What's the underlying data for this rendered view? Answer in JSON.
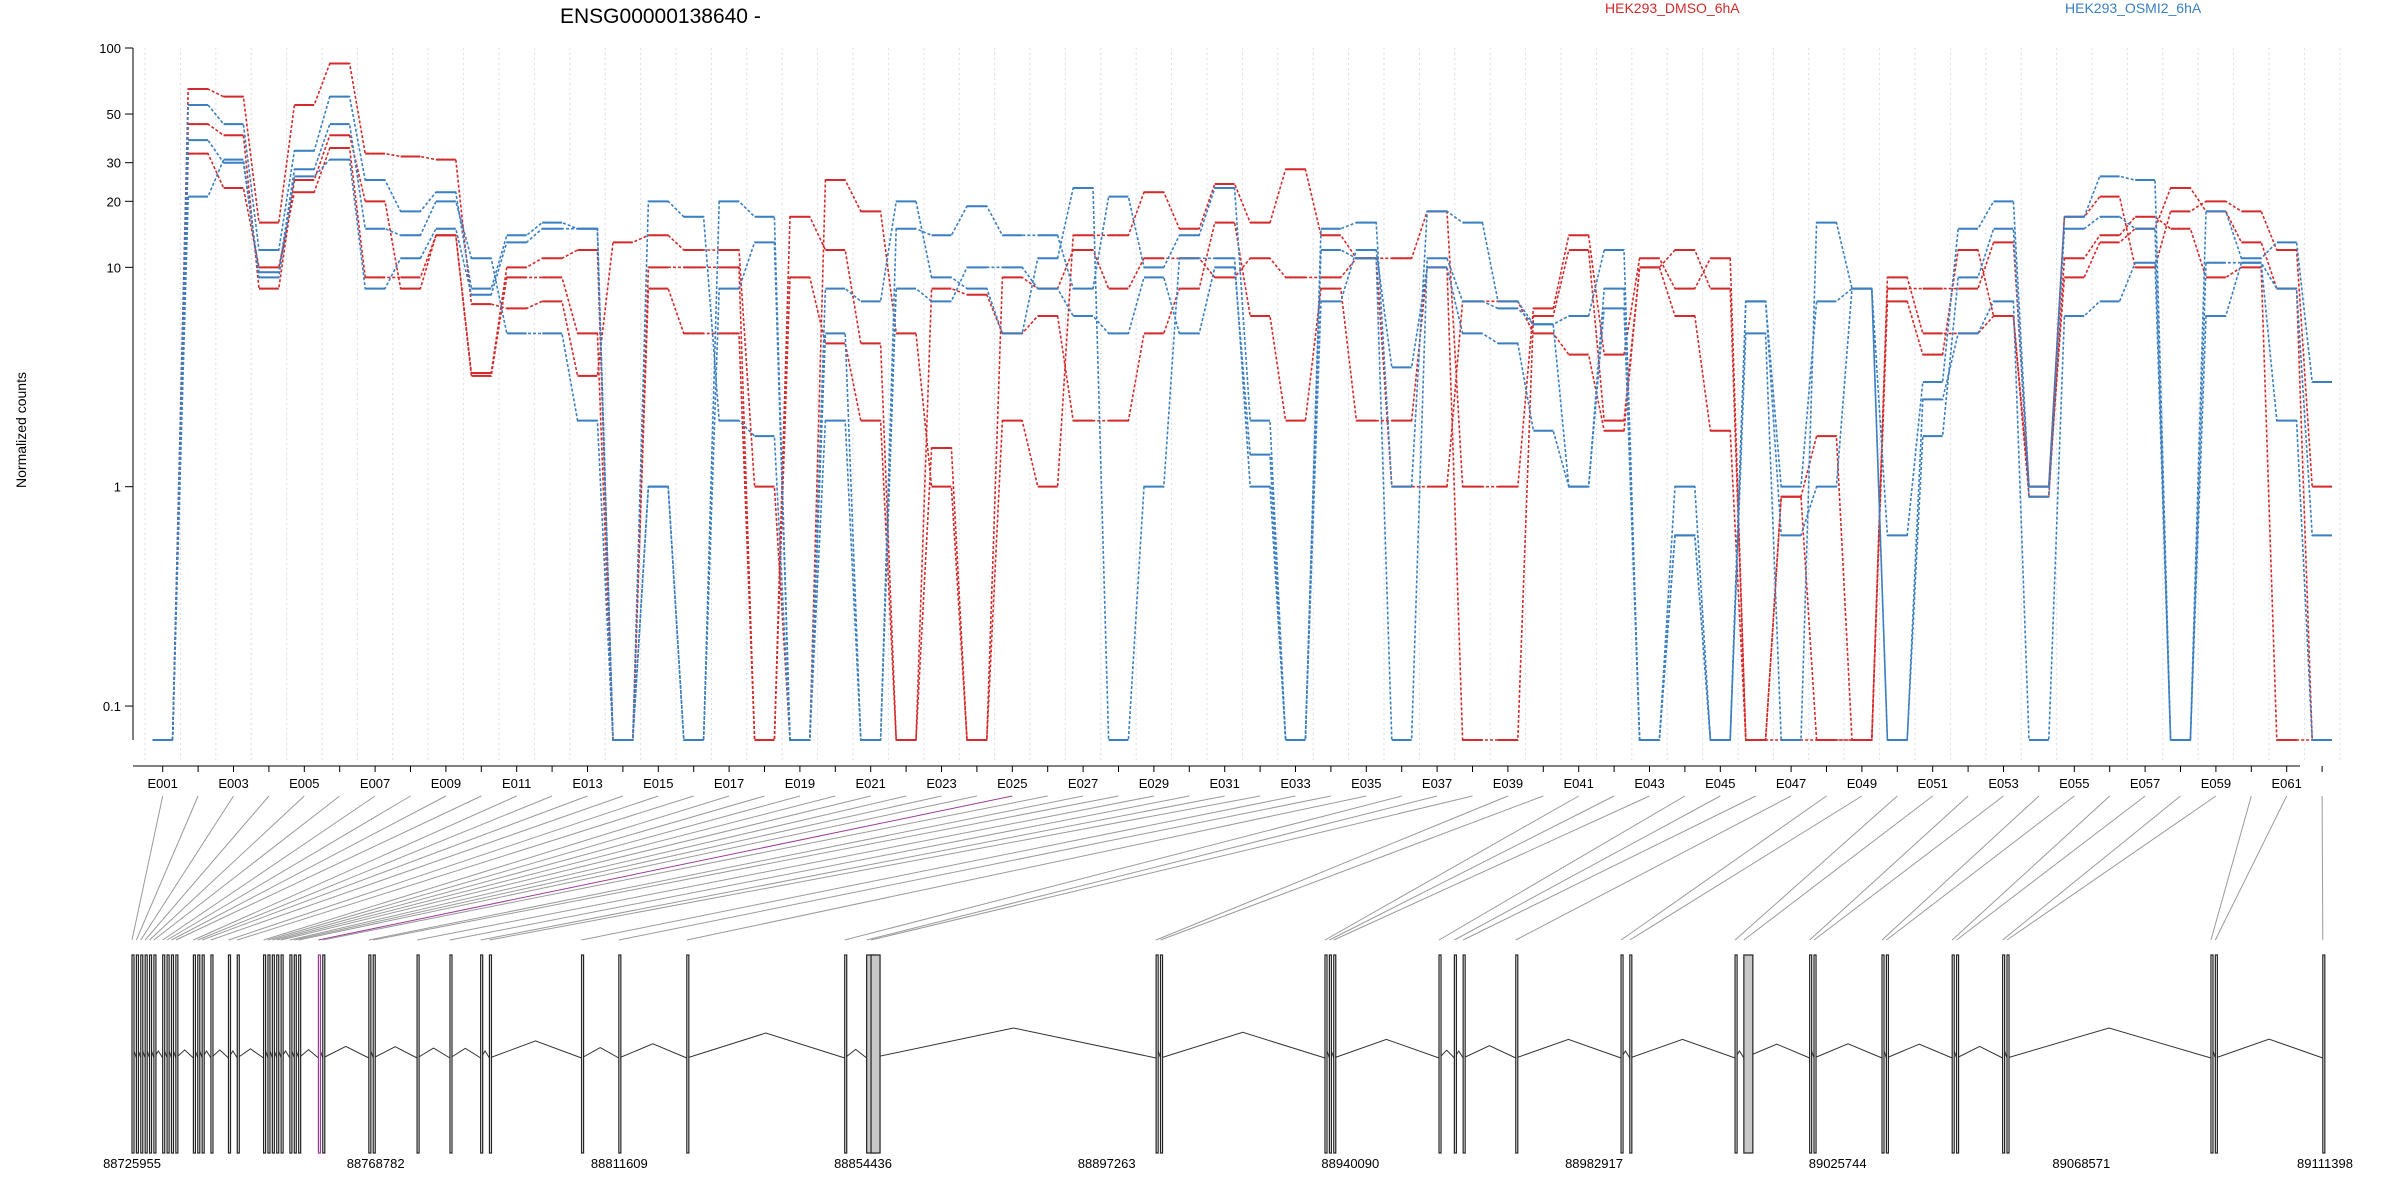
{
  "chart_data": {
    "type": "line",
    "title": "ENSG00000138640 -",
    "ylabel": "Normalized counts",
    "xlabel": "",
    "yscale": "log",
    "ylim": [
      0.07,
      100
    ],
    "y_ticks": [
      "100",
      "50",
      "30",
      "20",
      "10",
      "1",
      "0.1"
    ],
    "y_tick_values": [
      100,
      50,
      30,
      20,
      10,
      1,
      0.1
    ],
    "legend_position": "top",
    "grid": "vertical dotted",
    "colors": {
      "HEK293_DMSO_6hA": "#d42a2a",
      "HEK293_OSMI2_6hA": "#3a7fc1",
      "highlight": "#9b3d9b"
    },
    "exon_labels": [
      "E001",
      "E003",
      "E005",
      "E007",
      "E009",
      "E011",
      "E013",
      "E015",
      "E017",
      "E019",
      "E021",
      "E023",
      "E025",
      "E027",
      "E029",
      "E031",
      "E033",
      "E035",
      "E037",
      "E039",
      "E041",
      "E043",
      "E045",
      "E047",
      "E049",
      "E051",
      "E053",
      "E055",
      "E057",
      "E059",
      "E061"
    ],
    "genomic_ticks": [
      "88725955",
      "88768782",
      "88811609",
      "88854436",
      "88897263",
      "88940090",
      "88982917",
      "89025744",
      "89068571",
      "89111398"
    ],
    "genomic_tick_values": [
      88725955,
      88768782,
      88811609,
      88854436,
      88897263,
      88940090,
      88982917,
      89025744,
      89068571,
      89111398
    ],
    "series": [
      {
        "name": "HEK293_DMSO_6hA",
        "values": [
          0.07,
          65,
          60,
          16,
          55,
          85,
          33,
          32,
          31,
          6.8,
          6.5,
          7,
          3.2,
          13,
          14,
          12,
          12,
          1,
          0.07,
          25,
          18,
          5,
          1,
          0.07,
          2,
          1,
          14,
          14,
          22,
          15,
          24,
          16,
          28,
          14,
          11,
          11,
          18,
          1,
          1,
          6.5,
          14,
          4,
          11,
          8,
          11,
          0.07,
          0.9,
          1.7,
          0.07,
          8,
          8,
          8,
          13,
          1,
          17,
          21,
          10,
          18,
          20,
          18,
          12,
          1
        ]
      },
      {
        "name": "HEK293_DMSO_6hA",
        "values": [
          0.07,
          45,
          40,
          8,
          25,
          40,
          20,
          8,
          14,
          3.2,
          9,
          9,
          5,
          0.07,
          10,
          10,
          10,
          0.07,
          17,
          12,
          4.5,
          0.07,
          1.5,
          0.07,
          9,
          8,
          12,
          8,
          11,
          11,
          9,
          11,
          9,
          9,
          11,
          1,
          1,
          7,
          7,
          5,
          4,
          1.8,
          10,
          12,
          8,
          0.07,
          0.07,
          0.07,
          0.07,
          7,
          4,
          12,
          6,
          1,
          9,
          13,
          15,
          23,
          18,
          13,
          8,
          0.07
        ]
      },
      {
        "name": "HEK293_DMSO_6hA",
        "values": [
          0.07,
          33,
          23,
          10,
          22,
          35,
          9,
          9,
          14,
          3.3,
          10,
          11,
          12,
          0.07,
          8,
          5,
          5,
          0.07,
          9,
          4.5,
          2,
          0.07,
          8,
          7.5,
          5,
          6,
          2,
          2,
          5,
          8,
          16,
          6,
          2,
          8,
          2,
          2,
          10,
          0.07,
          0.07,
          6,
          12,
          2,
          10,
          6,
          1.8,
          0.07,
          0.9,
          0.07,
          0.07,
          9,
          5,
          5,
          6,
          0.9,
          11,
          14,
          17,
          15,
          9,
          10,
          0.07,
          0.07
        ]
      },
      {
        "name": "HEK293_OSMI2_6hA",
        "values": [
          0.07,
          55,
          45,
          12,
          34,
          60,
          25,
          18,
          22,
          8,
          14,
          16,
          15,
          0.07,
          1,
          0.07,
          20,
          17,
          0.07,
          5,
          0.07,
          15,
          14,
          19,
          14,
          14,
          8,
          21,
          10,
          14,
          23,
          2,
          0.07,
          15,
          16,
          1,
          18,
          16,
          7,
          5.5,
          6,
          12,
          0.07,
          1,
          0.07,
          5,
          0.07,
          16,
          8,
          0.6,
          3,
          15,
          20,
          1,
          17,
          26,
          25,
          0.07,
          18,
          11,
          13,
          3
        ]
      },
      {
        "name": "HEK293_OSMI2_6hA",
        "values": [
          0.07,
          38,
          30,
          9.5,
          28,
          45,
          15,
          14,
          20,
          11,
          5,
          5,
          2,
          0.07,
          20,
          17,
          2,
          1.7,
          0.07,
          8,
          7,
          20,
          9,
          8,
          5,
          11,
          23,
          0.07,
          1,
          11,
          11,
          1,
          0.07,
          12,
          11,
          0.07,
          11,
          7,
          6.5,
          5.5,
          1,
          8,
          0.07,
          0.6,
          0.07,
          7,
          1,
          7,
          8,
          0.07,
          1.7,
          9,
          15,
          0.9,
          15,
          17,
          15,
          0.07,
          10.5,
          10.5,
          8,
          0.6
        ]
      },
      {
        "name": "HEK293_OSMI2_6hA",
        "values": [
          0.07,
          21,
          31,
          9,
          26,
          31,
          8,
          11,
          15,
          7.5,
          13,
          15,
          15,
          0.07,
          1,
          0.07,
          8,
          13,
          0.07,
          2,
          0.07,
          8,
          7,
          10,
          10,
          8,
          6,
          5,
          9,
          5,
          10,
          1.4,
          0.07,
          7,
          12,
          3.5,
          10,
          5,
          4.5,
          1.8,
          1,
          6.5,
          0.07,
          0.6,
          0.07,
          7,
          0.6,
          1,
          8,
          0.07,
          2.5,
          5,
          7,
          0.07,
          6,
          7,
          10.5,
          0.07,
          6,
          10.5,
          2,
          0.07
        ]
      }
    ]
  }
}
